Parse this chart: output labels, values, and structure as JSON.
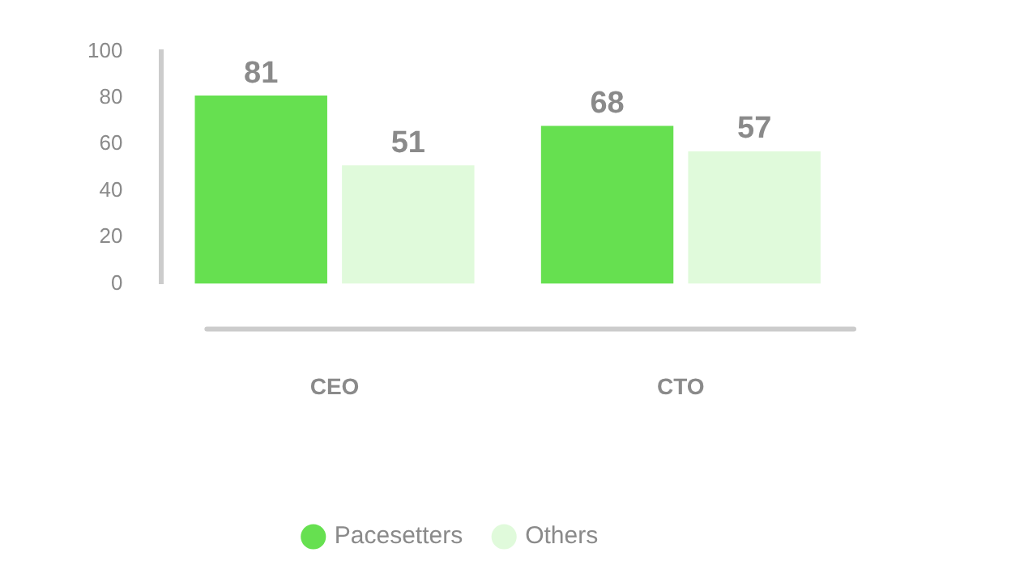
{
  "chart_data": {
    "type": "bar",
    "categories": [
      "CEO",
      "CTO"
    ],
    "series": [
      {
        "name": "Pacesetters",
        "color": "#66e050",
        "values": [
          81,
          68
        ]
      },
      {
        "name": "Others",
        "color": "#e0fadb",
        "values": [
          51,
          57
        ]
      }
    ],
    "ylim": [
      0,
      100
    ],
    "yticks": [
      0,
      20,
      40,
      60,
      80,
      100
    ],
    "grid": false,
    "legend": "bottom",
    "data_labels": true
  }
}
